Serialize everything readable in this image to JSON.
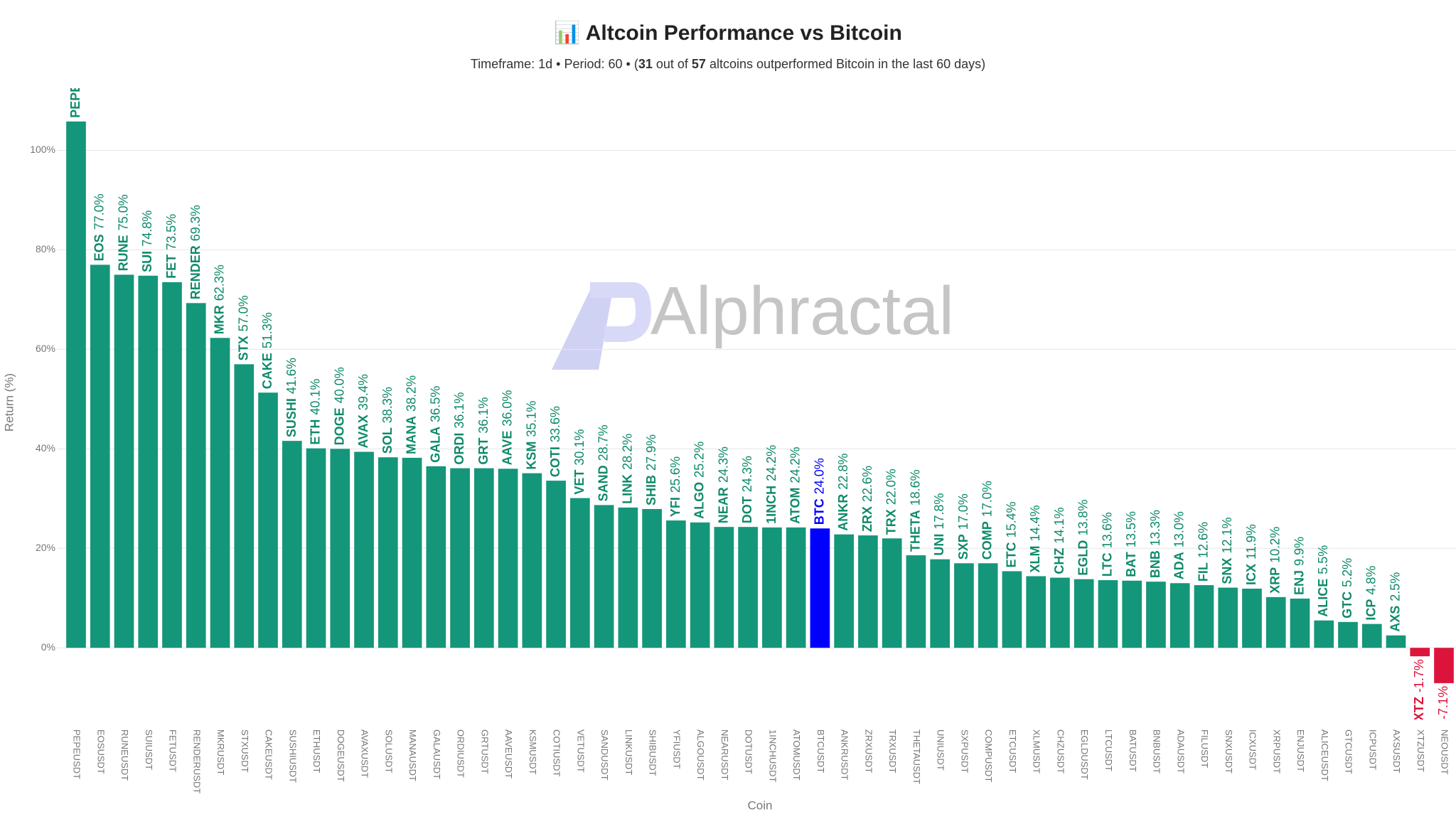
{
  "chart_data": {
    "type": "bar",
    "title": "📊 Altcoin Performance vs Bitcoin",
    "subtitle": [
      "Timeframe: 1d  •  Period: 60  •  (",
      "31",
      " out of ",
      "57",
      " altcoins outperformed Bitcoin in the last 60 days)"
    ],
    "watermark": "Alphractal",
    "x_label": "Coin",
    "y_label": "Return (%)",
    "categories": [
      "PEPEUSDT",
      "EOSUSDT",
      "RUNEUSDT",
      "SUIUSDT",
      "FETUSDT",
      "RENDERUSDT",
      "MKRUSDT",
      "STXUSDT",
      "CAKEUSDT",
      "SUSHIUSDT",
      "ETHUSDT",
      "DOGEUSDT",
      "AVAXUSDT",
      "SOLUSDT",
      "MANAUSDT",
      "GALAUSDT",
      "ORDIUSDT",
      "GRTUSDT",
      "AAVEUSDT",
      "KSMUSDT",
      "COTIUSDT",
      "VETUSDT",
      "SANDUSDT",
      "LINKUSDT",
      "SHIBUSDT",
      "YFIUSDT",
      "ALGOUSDT",
      "NEARUSDT",
      "DOTUSDT",
      "1INCHUSDT",
      "ATOMUSDT",
      "BTCUSDT",
      "ANKRUSDT",
      "ZRXUSDT",
      "TRXUSDT",
      "THETAUSDT",
      "UNIUSDT",
      "SXPUSDT",
      "COMPUSDT",
      "ETCUSDT",
      "XLMUSDT",
      "CHZUSDT",
      "EGLDUSDT",
      "LTCUSDT",
      "BATUSDT",
      "BNBUSDT",
      "ADAUSDT",
      "FILUSDT",
      "SNXUSDT",
      "ICXUSDT",
      "XRPUSDT",
      "ENJUSDT",
      "ALICEUSDT",
      "GTCUSDT",
      "ICPUSDT",
      "AXSUSDT",
      "XTZUSDT",
      "NEOUSDT"
    ],
    "values": [
      105.8,
      77.0,
      75.0,
      74.8,
      73.5,
      69.3,
      62.3,
      57.0,
      51.3,
      41.6,
      40.1,
      40.0,
      39.4,
      38.3,
      38.2,
      36.5,
      36.1,
      36.1,
      36.0,
      35.1,
      33.6,
      30.1,
      28.7,
      28.2,
      27.9,
      25.6,
      25.2,
      24.3,
      24.3,
      24.2,
      24.2,
      24.0,
      22.8,
      22.6,
      22.0,
      18.6,
      17.8,
      17.0,
      17.0,
      15.4,
      14.4,
      14.1,
      13.8,
      13.6,
      13.5,
      13.3,
      13.0,
      12.6,
      12.1,
      11.9,
      10.2,
      9.9,
      5.5,
      5.2,
      4.8,
      2.5,
      -1.7,
      -7.1
    ],
    "bar_names": [
      "PEPE",
      "EOS",
      "RUNE",
      "SUI",
      "FET",
      "RENDER",
      "MKR",
      "STX",
      "CAKE",
      "SUSHI",
      "ETH",
      "DOGE",
      "AVAX",
      "SOL",
      "MANA",
      "GALA",
      "ORDI",
      "GRT",
      "AAVE",
      "KSM",
      "COTI",
      "VET",
      "SAND",
      "LINK",
      "SHIB",
      "YFI",
      "ALGO",
      "NEAR",
      "DOT",
      "1INCH",
      "ATOM",
      "BTC",
      "ANKR",
      "ZRX",
      "TRX",
      "THETA",
      "UNI",
      "SXP",
      "COMP",
      "ETC",
      "XLM",
      "CHZ",
      "EGLD",
      "LTC",
      "BAT",
      "BNB",
      "ADA",
      "FIL",
      "SNX",
      "ICX",
      "XRP",
      "ENJ",
      "ALICE",
      "GTC",
      "ICP",
      "AXS",
      "XTZ",
      null
    ],
    "value_labels": [
      null,
      "77.0%",
      "75.0%",
      "74.8%",
      "73.5%",
      "69.3%",
      "62.3%",
      "57.0%",
      "51.3%",
      "41.6%",
      "40.1%",
      "40.0%",
      "39.4%",
      "38.3%",
      "38.2%",
      "36.5%",
      "36.1%",
      "36.1%",
      "36.0%",
      "35.1%",
      "33.6%",
      "30.1%",
      "28.7%",
      "28.2%",
      "27.9%",
      "25.6%",
      "25.2%",
      "24.3%",
      "24.3%",
      "24.2%",
      "24.2%",
      "24.0%",
      "22.8%",
      "22.6%",
      "22.0%",
      "18.6%",
      "17.8%",
      "17.0%",
      "17.0%",
      "15.4%",
      "14.4%",
      "14.1%",
      "13.8%",
      "13.6%",
      "13.5%",
      "13.3%",
      "13.0%",
      "12.6%",
      "12.1%",
      "11.9%",
      "10.2%",
      "9.9%",
      "5.5%",
      "5.2%",
      "4.8%",
      "2.5%",
      "-1.7%",
      "-7.1%"
    ],
    "colors": [
      "#14967a",
      "#14967a",
      "#14967a",
      "#14967a",
      "#14967a",
      "#14967a",
      "#14967a",
      "#14967a",
      "#14967a",
      "#14967a",
      "#14967a",
      "#14967a",
      "#14967a",
      "#14967a",
      "#14967a",
      "#14967a",
      "#14967a",
      "#14967a",
      "#14967a",
      "#14967a",
      "#14967a",
      "#14967a",
      "#14967a",
      "#14967a",
      "#14967a",
      "#14967a",
      "#14967a",
      "#14967a",
      "#14967a",
      "#14967a",
      "#14967a",
      "#0000ff",
      "#14967a",
      "#14967a",
      "#14967a",
      "#14967a",
      "#14967a",
      "#14967a",
      "#14967a",
      "#14967a",
      "#14967a",
      "#14967a",
      "#14967a",
      "#14967a",
      "#14967a",
      "#14967a",
      "#14967a",
      "#14967a",
      "#14967a",
      "#14967a",
      "#14967a",
      "#14967a",
      "#14967a",
      "#14967a",
      "#14967a",
      "#14967a",
      "#dc143c",
      "#dc143c"
    ],
    "ylim": [
      -14.4,
      112.5
    ],
    "yticks": [
      {
        "value": 0,
        "label": "0%"
      },
      {
        "value": 20,
        "label": "20%"
      },
      {
        "value": 40,
        "label": "40%"
      },
      {
        "value": 60,
        "label": "60%"
      },
      {
        "value": 80,
        "label": "80%"
      },
      {
        "value": 100,
        "label": "100%"
      }
    ],
    "grid": true
  }
}
